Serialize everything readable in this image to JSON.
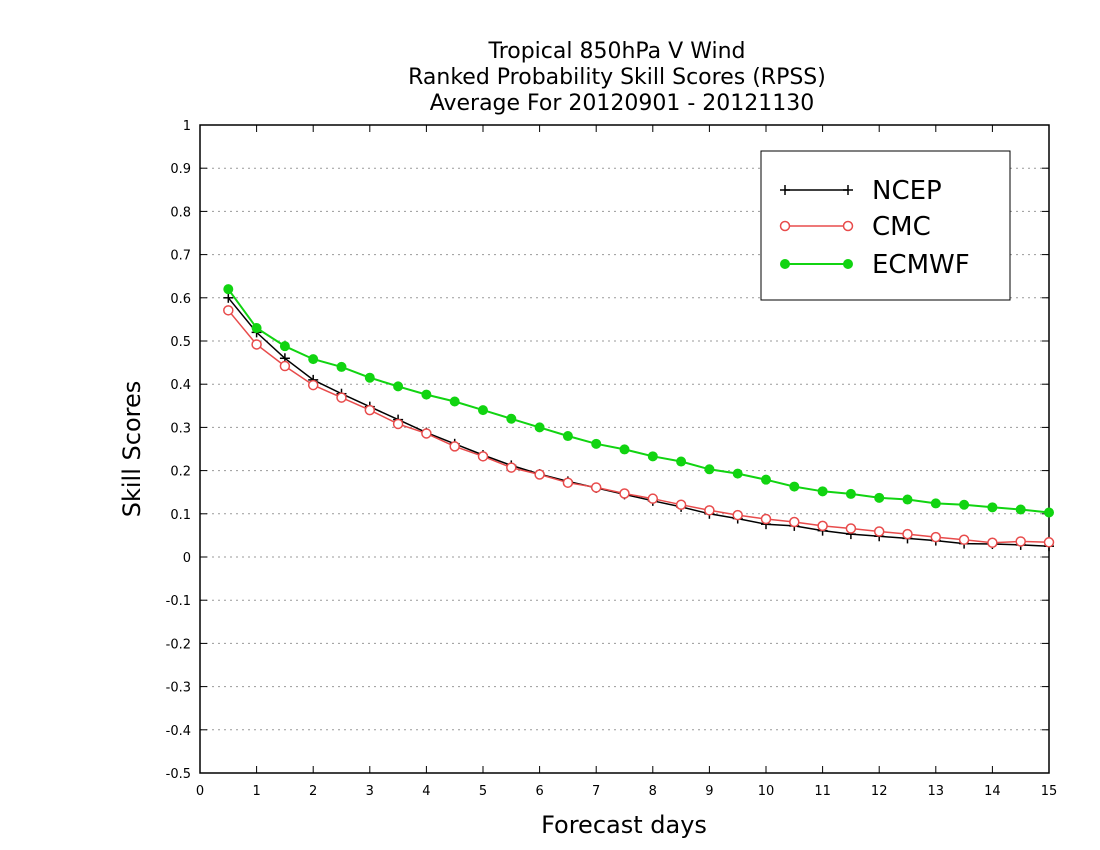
{
  "chart_data": {
    "type": "line",
    "title_lines": [
      "Tropical 850hPa V Wind",
      "Ranked Probability Skill Scores (RPSS)",
      "Average For 20120901 - 20121130"
    ],
    "xlabel": "Forecast days",
    "ylabel": "Skill Scores",
    "xlim": [
      0,
      15
    ],
    "ylim": [
      -0.5,
      1
    ],
    "x_ticks": [
      "0",
      "1",
      "2",
      "3",
      "4",
      "5",
      "6",
      "7",
      "8",
      "9",
      "10",
      "11",
      "12",
      "13",
      "14",
      "15"
    ],
    "y_ticks": [
      "-0.5",
      "-0.4",
      "-0.3",
      "-0.2",
      "-0.1",
      "0",
      "0.1",
      "0.2",
      "0.3",
      "0.4",
      "0.5",
      "0.6",
      "0.7",
      "0.8",
      "0.9",
      "1"
    ],
    "grid": true,
    "legend_position": "top-right",
    "x": [
      0.5,
      1,
      1.5,
      2,
      2.5,
      3,
      3.5,
      4,
      4.5,
      5,
      5.5,
      6,
      6.5,
      7,
      7.5,
      8,
      8.5,
      9,
      9.5,
      10,
      10.5,
      11,
      11.5,
      12,
      12.5,
      13,
      13.5,
      14,
      14.5,
      15
    ],
    "series": [
      {
        "name": "NCEP",
        "color": "#000000",
        "marker": "plus",
        "values": [
          0.6,
          0.52,
          0.46,
          0.41,
          0.378,
          0.348,
          0.318,
          0.288,
          0.262,
          0.236,
          0.212,
          0.192,
          0.175,
          0.16,
          0.145,
          0.13,
          0.116,
          0.1,
          0.089,
          0.076,
          0.072,
          0.061,
          0.053,
          0.048,
          0.043,
          0.038,
          0.031,
          0.03,
          0.028,
          0.025
        ]
      },
      {
        "name": "CMC",
        "color": "#e84b4b",
        "marker": "open-circle",
        "values": [
          0.571,
          0.492,
          0.442,
          0.398,
          0.369,
          0.34,
          0.308,
          0.286,
          0.256,
          0.233,
          0.207,
          0.191,
          0.172,
          0.161,
          0.147,
          0.135,
          0.121,
          0.108,
          0.097,
          0.088,
          0.081,
          0.072,
          0.066,
          0.059,
          0.053,
          0.046,
          0.04,
          0.033,
          0.036,
          0.034
        ]
      },
      {
        "name": "ECMWF",
        "color": "#11d411",
        "marker": "filled-circle",
        "values": [
          0.62,
          0.53,
          0.488,
          0.458,
          0.44,
          0.415,
          0.395,
          0.376,
          0.36,
          0.34,
          0.32,
          0.3,
          0.28,
          0.262,
          0.249,
          0.233,
          0.221,
          0.203,
          0.193,
          0.179,
          0.163,
          0.152,
          0.146,
          0.137,
          0.133,
          0.124,
          0.121,
          0.115,
          0.11,
          0.103
        ]
      }
    ]
  }
}
